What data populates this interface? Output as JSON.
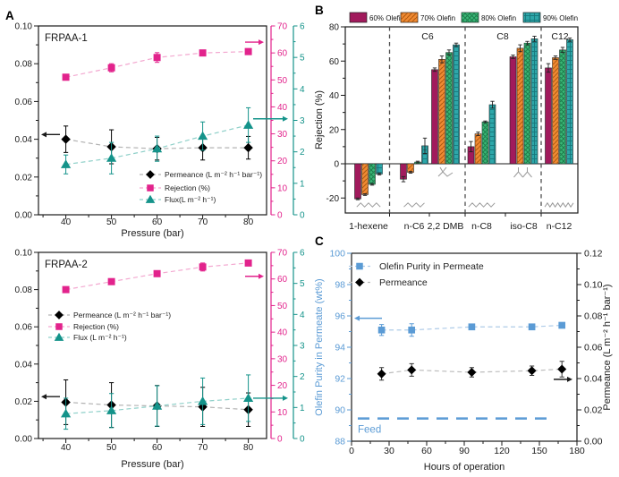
{
  "panels": {
    "a_letter": "A",
    "b_letter": "B",
    "c_letter": "C"
  },
  "colors": {
    "pink": "#E2238C",
    "pink_light": "#F3A8D0",
    "teal": "#14938A",
    "teal_light": "#8FD0C9",
    "black": "#1A1A1A",
    "gray_dash": "#B0B0B0",
    "blue": "#5B9BD5",
    "blue_light": "#AECBE8",
    "bar_maroon": "#A11A5C",
    "bar_orange": "#F08A33",
    "bar_green": "#3AB877",
    "bar_teal": "#2DA7A9",
    "hatch_orange": "#B05A10",
    "hatch_green": "#1E7D4C",
    "hatch_teal": "#17777C",
    "molecule_gray": "#9A9A9A"
  },
  "chart_data": [
    {
      "id": "frpaa1",
      "type": "line",
      "title": "FRPAA-1",
      "xlabel": "Pressure (bar)",
      "x": [
        40,
        50,
        60,
        70,
        80
      ],
      "x_axis": {
        "min": 34,
        "max": 84,
        "major": 10,
        "minor": 5,
        "decimals": 0
      },
      "left_axis": {
        "min": 0,
        "max": 0.1,
        "major": 0.02,
        "minor": 0.01,
        "decimals": 2,
        "color": "#1A1A1A"
      },
      "right_axis_1": {
        "min": 0,
        "max": 70,
        "major": 10,
        "minor": 5,
        "decimals": 0,
        "color": "#E2238C"
      },
      "right_axis_2": {
        "min": 0,
        "max": 6,
        "major": 1,
        "minor": 0.5,
        "decimals": 0,
        "color": "#14938A"
      },
      "series": [
        {
          "name": "Permeance (L m⁻² h⁻¹ bar⁻¹)",
          "axis": "left",
          "marker": "diamond",
          "color": "#000000",
          "line_color": "#B3B3B3",
          "values": [
            0.04,
            0.036,
            0.035,
            0.0355,
            0.0355
          ],
          "errors": [
            0.007,
            0.009,
            0.006,
            0.0065,
            0.006
          ]
        },
        {
          "name": "Rejection (%)",
          "axis": "right1",
          "marker": "square",
          "color": "#E2238C",
          "line_color": "#F3A8D0",
          "values": [
            51,
            54.5,
            58.3,
            60,
            60.5
          ],
          "errors": [
            1,
            1.5,
            1.8,
            0.8,
            1
          ]
        },
        {
          "name": "Flux(L m⁻² h⁻¹)",
          "axis": "right2",
          "marker": "triangle",
          "color": "#14938A",
          "line_color": "#8FD0C9",
          "values": [
            1.6,
            1.8,
            2.1,
            2.5,
            2.85
          ],
          "errors": [
            0.3,
            0.5,
            0.4,
            0.45,
            0.55
          ]
        }
      ],
      "arrows": [
        {
          "axis": "left",
          "value": 0.0425,
          "dir": "left"
        },
        {
          "axis": "right1",
          "value": 64,
          "dir": "right"
        },
        {
          "axis": "right2",
          "value": 3.05,
          "dir": "right_out"
        }
      ]
    },
    {
      "id": "frpaa2",
      "type": "line",
      "title": "FRPAA-2",
      "xlabel": "Pressure (bar)",
      "x": [
        40,
        50,
        60,
        70,
        80
      ],
      "x_axis": {
        "min": 34,
        "max": 84,
        "major": 10,
        "minor": 5,
        "decimals": 0
      },
      "left_axis": {
        "min": 0,
        "max": 0.1,
        "major": 0.02,
        "minor": 0.01,
        "decimals": 2,
        "color": "#1A1A1A"
      },
      "right_axis_1": {
        "min": 0,
        "max": 70,
        "major": 10,
        "minor": 5,
        "decimals": 0,
        "color": "#E2238C"
      },
      "right_axis_2": {
        "min": 0,
        "max": 6,
        "major": 1,
        "minor": 0.5,
        "decimals": 0,
        "color": "#14938A"
      },
      "series": [
        {
          "name": "Permeance (L m⁻² h⁻¹ bar⁻¹)",
          "axis": "left",
          "marker": "diamond",
          "color": "#000000",
          "line_color": "#B3B3B3",
          "values": [
            0.0195,
            0.018,
            0.0175,
            0.017,
            0.0155
          ],
          "errors": [
            0.012,
            0.012,
            0.011,
            0.0105,
            0.009
          ]
        },
        {
          "name": "Rejection (%)",
          "axis": "right1",
          "marker": "square",
          "color": "#E2238C",
          "line_color": "#F3A8D0",
          "values": [
            56,
            59,
            62,
            64.5,
            66
          ],
          "errors": [
            0.5,
            0.5,
            0.5,
            1.5,
            1
          ]
        },
        {
          "name": "Flux (L m⁻² h⁻¹)",
          "axis": "right2",
          "marker": "triangle",
          "color": "#14938A",
          "line_color": "#8FD0C9",
          "values": [
            0.8,
            0.9,
            1.05,
            1.2,
            1.3
          ],
          "errors": [
            0.5,
            0.55,
            0.65,
            0.75,
            0.75
          ]
        }
      ],
      "arrows": [
        {
          "axis": "left",
          "value": 0.0225,
          "dir": "left"
        },
        {
          "axis": "right1",
          "value": 61,
          "dir": "right"
        },
        {
          "axis": "right2",
          "value": 1.3,
          "dir": "right_out"
        }
      ]
    },
    {
      "id": "rejection_vs_hydrocarbons",
      "type": "bar",
      "ylabel": "Rejection (%)",
      "ylim": [
        -29,
        80
      ],
      "y_axis": {
        "min": -20,
        "max": 80,
        "major": 20,
        "minor": 10,
        "decimals": 0
      },
      "categories": [
        "1-hexene",
        "n-C6",
        "2,2 DMB",
        "n-C8",
        "iso-C8",
        "n-C12"
      ],
      "group_labels": [
        "C6",
        "C8",
        "C12"
      ],
      "series": [
        {
          "name": "60% Olefin",
          "color": "#A11A5C",
          "hatch": "none",
          "values": [
            -20.5,
            -9,
            55,
            10,
            62.5,
            56
          ],
          "errors": [
            0.5,
            1.5,
            1,
            3,
            1,
            2.5
          ]
        },
        {
          "name": "70% Olefin",
          "color": "#F08A33",
          "hatch": "diag",
          "values": [
            -18,
            -5,
            61,
            17.5,
            67.5,
            62
          ],
          "errors": [
            0.5,
            0.5,
            2,
            1,
            2,
            1
          ]
        },
        {
          "name": "80% Olefin",
          "color": "#3AB877",
          "hatch": "cross",
          "values": [
            -12,
            1,
            65,
            24.5,
            70.5,
            66.5
          ],
          "errors": [
            0.5,
            0.5,
            1.5,
            0.5,
            1,
            1.5
          ]
        },
        {
          "name": "90% Olefin",
          "color": "#2DA7A9",
          "hatch": "grid",
          "values": [
            -6,
            10.5,
            69.5,
            34.5,
            73,
            72.5
          ],
          "errors": [
            0.5,
            4.5,
            1,
            2,
            1.5,
            1
          ]
        }
      ],
      "molecule_glyphs": [
        "zigzag-5",
        "zigzag-5",
        "branched-dmb",
        "zigzag-7",
        "branched-iso",
        "zigzag-11"
      ]
    },
    {
      "id": "stability",
      "type": "line",
      "xlabel": "Hours of operation",
      "x": [
        24,
        48,
        96,
        144,
        168
      ],
      "x_axis": {
        "min": 0,
        "max": 180,
        "major": 30,
        "minor": 15,
        "decimals": 0
      },
      "left_axis": {
        "label": "Olefin Purity in Permeate (wt%)",
        "min": 88,
        "max": 100,
        "major": 2,
        "minor": 1,
        "decimals": 0,
        "color": "#5B9BD5"
      },
      "right_axis": {
        "label": "Permeance (L m⁻² h⁻¹ bar⁻¹)",
        "min": 0,
        "max": 0.12,
        "major": 0.02,
        "minor": 0.01,
        "decimals": 2,
        "color": "#1A1A1A"
      },
      "series": [
        {
          "name": "Olefin Purity in Permeate",
          "axis": "left",
          "marker": "square",
          "color": "#5B9BD5",
          "line_color": "#AECBE8",
          "values": [
            95.1,
            95.1,
            95.3,
            95.3,
            95.4
          ],
          "errors": [
            0.35,
            0.4,
            0.15,
            0.15,
            0.15
          ]
        },
        {
          "name": "Permeance",
          "axis": "right",
          "marker": "diamond",
          "color": "#000000",
          "line_color": "#BDBDBD",
          "values": [
            0.043,
            0.0455,
            0.044,
            0.045,
            0.046
          ],
          "errors": [
            0.004,
            0.004,
            0.003,
            0.003,
            0.005
          ]
        }
      ],
      "feed_line": {
        "label": "Feed",
        "value": 89.45,
        "color": "#5B9BD5"
      },
      "arrows": [
        {
          "axis": "left",
          "value": 95.85,
          "dir": "left"
        },
        {
          "axis": "right",
          "value": 0.0395,
          "dir": "right"
        }
      ]
    }
  ]
}
